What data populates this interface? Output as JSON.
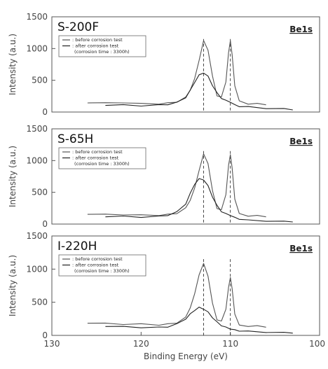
{
  "chart_data": [
    {
      "type": "line",
      "title": "S-200F",
      "element_label": "Be1s",
      "ylabel": "Intensity (a.u.)",
      "xlabel": "",
      "xlim": [
        130,
        100
      ],
      "ylim": [
        0,
        1500
      ],
      "yticks": [
        0,
        500,
        1000,
        1500
      ],
      "legend": {
        "position": "top-left",
        "entries": [
          ": before corrosion test",
          ": after corrosion test",
          "(corrosion time : 3300h)"
        ]
      },
      "reference_lines": [
        113,
        110
      ],
      "series": [
        {
          "x": [
            126,
            124,
            122,
            120,
            118,
            117,
            116,
            115,
            114.5,
            114,
            113.5,
            113,
            112.5,
            112,
            111.5,
            111,
            110.5,
            110.2,
            110,
            109.8,
            109.5,
            109,
            108,
            107,
            106
          ],
          "y": [
            150,
            140,
            150,
            130,
            130,
            140,
            160,
            230,
            350,
            520,
            820,
            1120,
            980,
            560,
            260,
            230,
            480,
            930,
            1130,
            900,
            420,
            170,
            130,
            130,
            120
          ]
        },
        {
          "x": [
            124,
            122,
            120,
            118,
            117,
            116,
            115,
            114.5,
            114,
            113.5,
            113,
            112.5,
            112,
            111.5,
            111,
            110.5,
            110,
            109.5,
            109,
            108,
            106,
            104,
            103
          ],
          "y": [
            110,
            110,
            100,
            110,
            120,
            150,
            230,
            340,
            470,
            580,
            620,
            560,
            420,
            300,
            220,
            180,
            160,
            110,
            90,
            80,
            60,
            50,
            40
          ]
        }
      ]
    },
    {
      "type": "line",
      "title": "S-65H",
      "element_label": "Be1s",
      "ylabel": "Intensity (a.u.)",
      "xlabel": "",
      "xlim": [
        130,
        100
      ],
      "ylim": [
        0,
        1500
      ],
      "yticks": [
        0,
        500,
        1000,
        1500
      ],
      "legend": {
        "position": "top-left",
        "entries": [
          ": before corrosion test",
          ": after corrosion test",
          "(corrosion time : 3300h)"
        ]
      },
      "reference_lines": [
        113,
        110
      ],
      "series": [
        {
          "x": [
            126,
            124,
            122,
            120,
            118,
            117,
            116,
            115,
            114.5,
            114,
            113.5,
            113,
            112.5,
            112,
            111.5,
            111,
            110.5,
            110.2,
            110,
            109.8,
            109.5,
            109,
            108,
            107,
            106
          ],
          "y": [
            160,
            150,
            150,
            140,
            140,
            150,
            170,
            250,
            380,
            560,
            850,
            1100,
            960,
            520,
            250,
            220,
            470,
            920,
            1100,
            880,
            400,
            160,
            130,
            130,
            120
          ]
        },
        {
          "x": [
            124,
            122,
            120,
            118,
            117,
            116,
            115,
            114.5,
            114,
            113.5,
            113,
            112.5,
            112,
            111.5,
            111,
            110.5,
            110,
            109.5,
            109,
            108,
            106,
            104,
            103
          ],
          "y": [
            120,
            120,
            110,
            120,
            140,
            190,
            320,
            480,
            630,
            710,
            700,
            600,
            430,
            290,
            200,
            160,
            140,
            100,
            80,
            60,
            50,
            40,
            40
          ]
        }
      ]
    },
    {
      "type": "line",
      "title": "I-220H",
      "element_label": "Be1s",
      "ylabel": "Intensity (a.u.)",
      "xlabel": "Binding Energy (eV)",
      "xlim": [
        130,
        100
      ],
      "ylim": [
        0,
        1500
      ],
      "yticks": [
        0,
        500,
        1000,
        1500
      ],
      "xticks": [
        130,
        120,
        110,
        100
      ],
      "legend": {
        "position": "top-left",
        "entries": [
          ": before corrosion test",
          ": after corrosion test",
          "(corrosion time : 3300h)"
        ]
      },
      "reference_lines": [
        113,
        110
      ],
      "series": [
        {
          "x": [
            126,
            124,
            122,
            120,
            118,
            117,
            116,
            115,
            114.5,
            114,
            113.5,
            113,
            112.5,
            112,
            111.5,
            111,
            110.5,
            110.2,
            110,
            109.8,
            109.5,
            109,
            108,
            107,
            106
          ],
          "y": [
            190,
            180,
            170,
            170,
            160,
            170,
            190,
            270,
            420,
            620,
            920,
            1080,
            900,
            480,
            240,
            210,
            400,
            720,
            880,
            700,
            330,
            150,
            140,
            140,
            130
          ]
        },
        {
          "x": [
            124,
            122,
            120,
            118,
            117,
            116,
            115,
            114.5,
            114,
            113.5,
            113,
            112.5,
            112,
            111.5,
            111,
            110.5,
            110,
            109.5,
            109,
            108,
            106,
            104,
            103
          ],
          "y": [
            140,
            130,
            120,
            120,
            130,
            170,
            250,
            320,
            380,
            420,
            400,
            350,
            270,
            200,
            150,
            120,
            100,
            80,
            70,
            60,
            50,
            40,
            40
          ]
        }
      ]
    }
  ]
}
